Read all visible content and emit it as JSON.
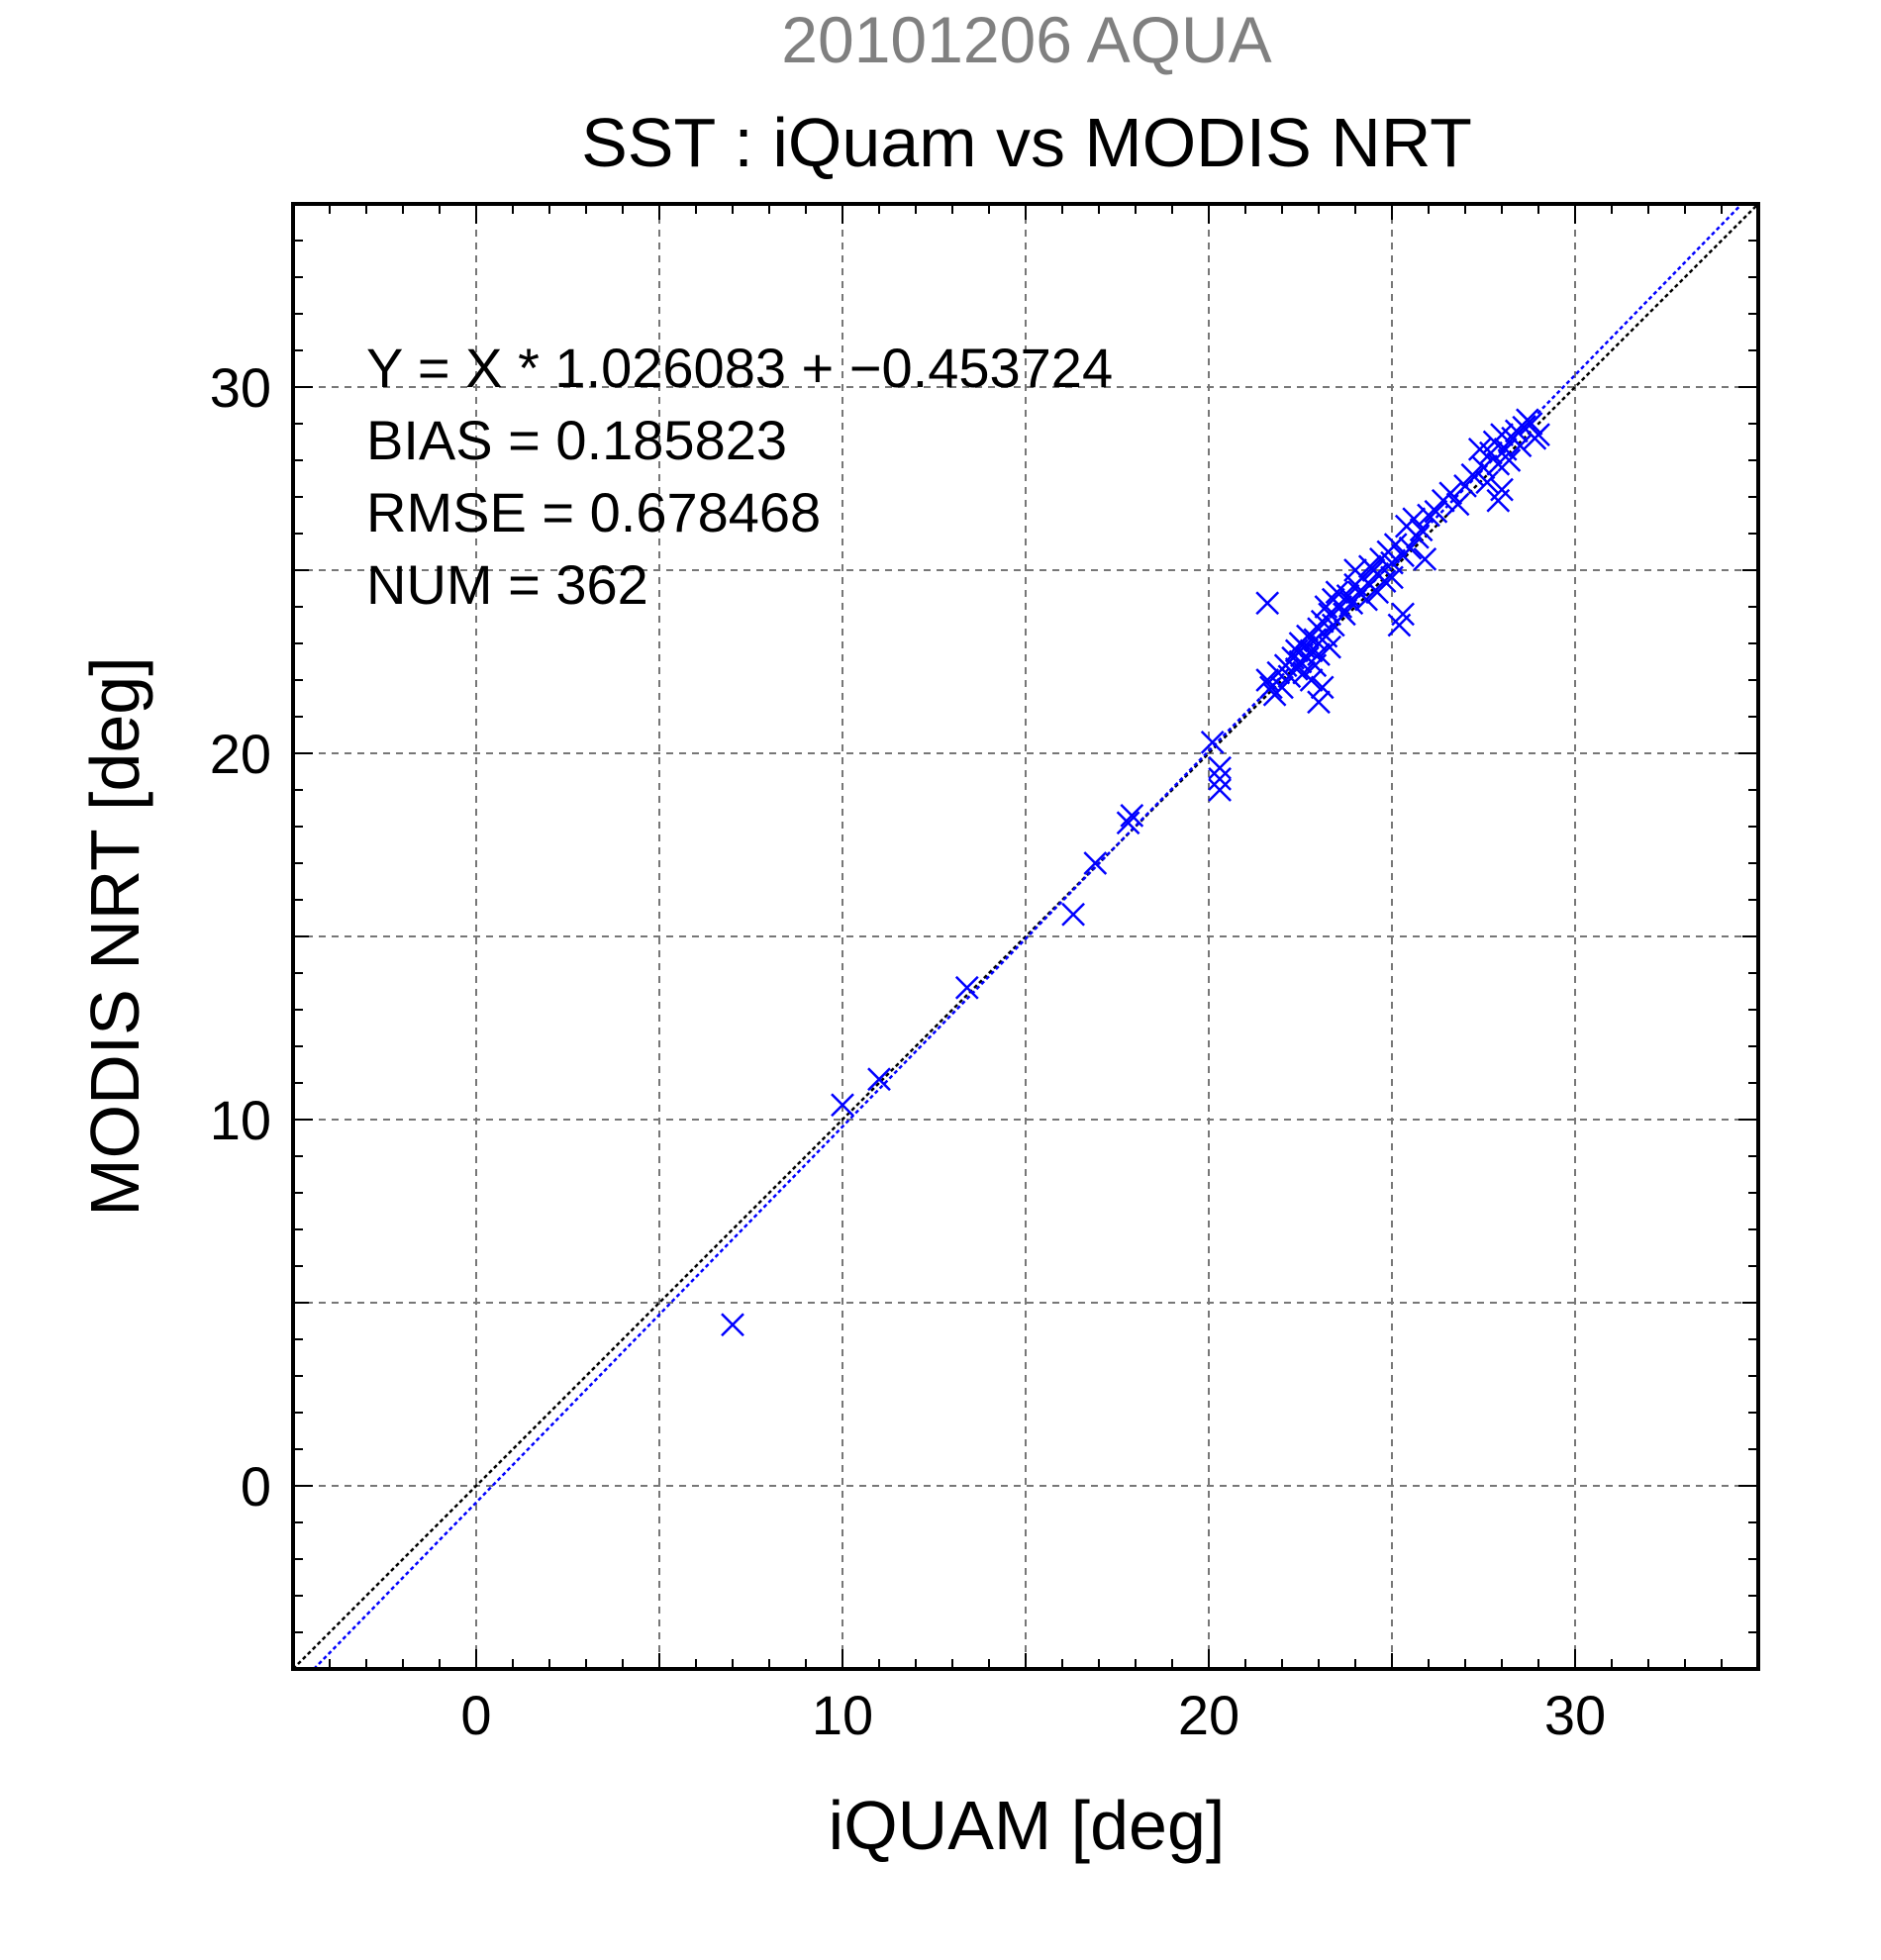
{
  "header": {
    "supertitle": "20101206 AQUA",
    "title": "SST : iQuam vs MODIS NRT"
  },
  "stats": {
    "line1": "Y = X * 1.026083 + −0.453724",
    "line2": "BIAS = 0.185823",
    "line3": "RMSE = 0.678468",
    "line4": "NUM = 362"
  },
  "colors": {
    "supertitle": "#808080",
    "points": "#0000ff",
    "one_to_one": "#000000",
    "regression": "#0000ff",
    "grid": "#777777"
  },
  "chart_data": {
    "type": "scatter",
    "xlabel": "iQUAM [deg]",
    "ylabel": "MODIS NRT [deg]",
    "xlim": [
      -5,
      35
    ],
    "ylim": [
      -5,
      35
    ],
    "xticks": [
      0,
      10,
      20,
      30
    ],
    "yticks": [
      0,
      10,
      20,
      30
    ],
    "grid": true,
    "marker": "x",
    "series": [
      {
        "type": "scatter",
        "points": [
          [
            7.0,
            4.4
          ],
          [
            10.0,
            10.4
          ],
          [
            11.0,
            11.1
          ],
          [
            13.4,
            13.6
          ],
          [
            16.3,
            15.6
          ],
          [
            16.9,
            17.0
          ],
          [
            17.8,
            18.1
          ],
          [
            17.9,
            18.3
          ],
          [
            20.1,
            20.3
          ],
          [
            20.3,
            19.6
          ],
          [
            20.3,
            19.3
          ],
          [
            20.3,
            19.0
          ],
          [
            21.6,
            24.1
          ],
          [
            21.6,
            22.0
          ],
          [
            21.7,
            21.8
          ],
          [
            21.8,
            21.6
          ],
          [
            21.9,
            22.2
          ],
          [
            22.0,
            21.8
          ],
          [
            22.1,
            22.4
          ],
          [
            22.2,
            22.1
          ],
          [
            22.3,
            22.6
          ],
          [
            22.4,
            22.3
          ],
          [
            22.4,
            22.8
          ],
          [
            22.5,
            23.0
          ],
          [
            22.5,
            22.5
          ],
          [
            22.6,
            22.2
          ],
          [
            22.6,
            22.9
          ],
          [
            22.7,
            23.2
          ],
          [
            22.7,
            22.6
          ],
          [
            22.8,
            22.0
          ],
          [
            22.8,
            22.8
          ],
          [
            22.9,
            23.1
          ],
          [
            22.9,
            22.4
          ],
          [
            23.0,
            23.4
          ],
          [
            23.0,
            22.7
          ],
          [
            23.0,
            21.4
          ],
          [
            23.1,
            21.8
          ],
          [
            23.1,
            23.6
          ],
          [
            23.2,
            23.2
          ],
          [
            23.2,
            24.0
          ],
          [
            23.3,
            23.8
          ],
          [
            23.3,
            22.9
          ],
          [
            23.4,
            24.2
          ],
          [
            23.4,
            23.5
          ],
          [
            23.5,
            24.4
          ],
          [
            23.6,
            24.0
          ],
          [
            23.7,
            23.8
          ],
          [
            23.8,
            24.3
          ],
          [
            23.9,
            24.1
          ],
          [
            24.0,
            24.6
          ],
          [
            24.0,
            25.0
          ],
          [
            24.1,
            24.4
          ],
          [
            24.2,
            24.8
          ],
          [
            24.3,
            24.2
          ],
          [
            24.4,
            25.1
          ],
          [
            24.4,
            24.6
          ],
          [
            24.5,
            25.0
          ],
          [
            24.6,
            24.4
          ],
          [
            24.6,
            24.9
          ],
          [
            24.7,
            25.3
          ],
          [
            24.8,
            24.7
          ],
          [
            24.9,
            25.5
          ],
          [
            25.0,
            25.2
          ],
          [
            25.0,
            24.8
          ],
          [
            25.1,
            25.7
          ],
          [
            25.2,
            23.5
          ],
          [
            25.3,
            23.8
          ],
          [
            25.3,
            25.4
          ],
          [
            25.4,
            26.2
          ],
          [
            25.5,
            25.6
          ],
          [
            25.6,
            26.4
          ],
          [
            25.7,
            25.9
          ],
          [
            25.8,
            26.1
          ],
          [
            25.9,
            25.3
          ],
          [
            26.0,
            26.5
          ],
          [
            26.2,
            26.6
          ],
          [
            26.4,
            26.9
          ],
          [
            26.6,
            27.1
          ],
          [
            26.8,
            26.8
          ],
          [
            27.0,
            27.3
          ],
          [
            27.2,
            27.6
          ],
          [
            27.4,
            28.3
          ],
          [
            27.5,
            27.8
          ],
          [
            27.6,
            27.4
          ],
          [
            27.7,
            28.2
          ],
          [
            27.8,
            28.5
          ],
          [
            27.9,
            27.9
          ],
          [
            27.9,
            26.9
          ],
          [
            28.0,
            28.7
          ],
          [
            28.0,
            27.2
          ],
          [
            28.1,
            28.3
          ],
          [
            28.2,
            28.0
          ],
          [
            28.3,
            28.6
          ],
          [
            28.4,
            28.8
          ],
          [
            28.5,
            28.4
          ],
          [
            28.6,
            28.9
          ],
          [
            28.7,
            29.1
          ],
          [
            28.8,
            29.0
          ],
          [
            28.9,
            28.6
          ],
          [
            29.0,
            28.7
          ]
        ]
      }
    ],
    "lines": [
      {
        "type": "one_to_one",
        "slope": 1.0,
        "intercept": 0.0
      },
      {
        "type": "regression",
        "slope": 1.026083,
        "intercept": -0.453724
      }
    ]
  }
}
